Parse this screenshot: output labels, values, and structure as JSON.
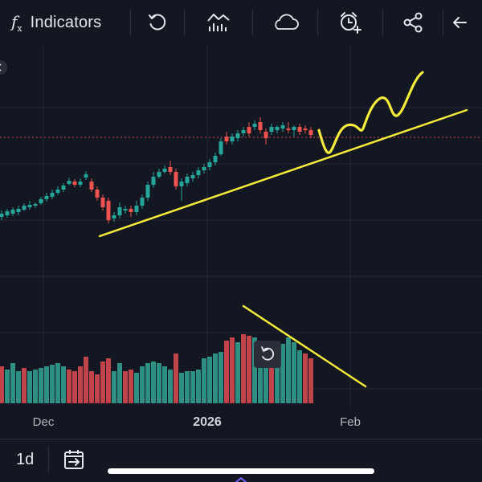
{
  "toolbar": {
    "fx_symbol": "f",
    "fx_sub": "x",
    "indicators_label": "Indicators",
    "icons": [
      "fx-icon",
      "undo-icon",
      "chart-type-icon",
      "cloud-icon",
      "alert-clock-icon",
      "share-icon",
      "back-arrow-icon"
    ]
  },
  "chart": {
    "x_axis_labels": [
      "Dec",
      "2026",
      "Feb"
    ],
    "colors": {
      "up": "#26a69a",
      "down": "#ef5350",
      "volume_up": "#2f8f83",
      "volume_down": "#c0444a",
      "drawing": "#f5eb3a",
      "price_line": "#ef5350",
      "grid": "#262a34",
      "background": "#131722"
    }
  },
  "bottom": {
    "interval": "1d",
    "icons": [
      "date-range-icon"
    ]
  }
}
